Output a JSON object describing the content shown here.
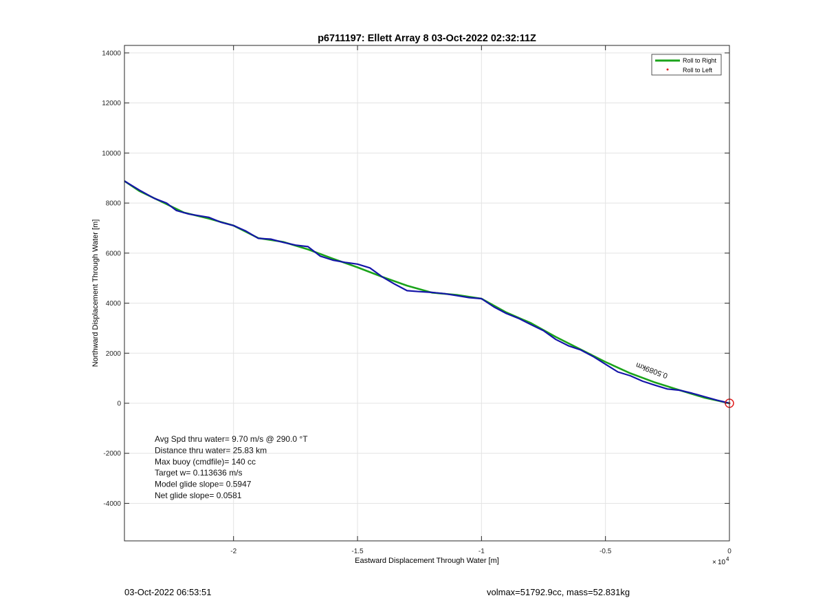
{
  "chart_data": {
    "type": "line",
    "title": "p6711197: Ellett Array 8 03-Oct-2022 02:32:11Z",
    "xlabel": "Eastward Displacement Through Water [m]",
    "ylabel": "Northward Displacement Through Water [m]",
    "x_exponent_label": "10",
    "x_exponent": "4",
    "xlim": [
      -24400,
      0
    ],
    "ylim": [
      -5500,
      14300
    ],
    "xticks": [
      -20000,
      -15000,
      -10000,
      -5000,
      0
    ],
    "xtick_labels": [
      "-2",
      "-1.5",
      "-1",
      "-0.5",
      "0"
    ],
    "yticks": [
      -4000,
      -2000,
      0,
      2000,
      4000,
      6000,
      8000,
      10000,
      12000,
      14000
    ],
    "ytick_labels": [
      "-4000",
      "-2000",
      "0",
      "2000",
      "4000",
      "6000",
      "8000",
      "10000",
      "12000",
      "14000"
    ],
    "grid": true,
    "legend_position": "top-right",
    "series": [
      {
        "name": "Roll to Right",
        "color": "#1aa31a",
        "points": [
          [
            -24400,
            8880
          ],
          [
            -23800,
            8480
          ],
          [
            -23000,
            8100
          ],
          [
            -22000,
            7620
          ],
          [
            -21000,
            7380
          ],
          [
            -20000,
            7100
          ],
          [
            -19000,
            6600
          ],
          [
            -18000,
            6450
          ],
          [
            -17000,
            6150
          ],
          [
            -16000,
            5780
          ],
          [
            -15000,
            5430
          ],
          [
            -14000,
            5050
          ],
          [
            -13000,
            4700
          ],
          [
            -12000,
            4420
          ],
          [
            -11000,
            4330
          ],
          [
            -10000,
            4180
          ],
          [
            -9000,
            3630
          ],
          [
            -8000,
            3200
          ],
          [
            -7000,
            2650
          ],
          [
            -6000,
            2150
          ],
          [
            -5000,
            1650
          ],
          [
            -4000,
            1200
          ],
          [
            -3000,
            830
          ],
          [
            -2000,
            520
          ],
          [
            -1000,
            220
          ],
          [
            0,
            0
          ]
        ]
      },
      {
        "name": "",
        "color": "#1414a8",
        "points": [
          [
            -24400,
            8880
          ],
          [
            -23800,
            8520
          ],
          [
            -23200,
            8190
          ],
          [
            -22700,
            8000
          ],
          [
            -22300,
            7700
          ],
          [
            -21800,
            7560
          ],
          [
            -21000,
            7430
          ],
          [
            -20500,
            7230
          ],
          [
            -20000,
            7100
          ],
          [
            -19500,
            6880
          ],
          [
            -19000,
            6590
          ],
          [
            -18500,
            6560
          ],
          [
            -18000,
            6430
          ],
          [
            -17500,
            6320
          ],
          [
            -17000,
            6260
          ],
          [
            -16500,
            5880
          ],
          [
            -16000,
            5720
          ],
          [
            -15500,
            5630
          ],
          [
            -15000,
            5560
          ],
          [
            -14500,
            5410
          ],
          [
            -14000,
            5050
          ],
          [
            -13500,
            4760
          ],
          [
            -13000,
            4500
          ],
          [
            -12500,
            4460
          ],
          [
            -12000,
            4430
          ],
          [
            -11500,
            4380
          ],
          [
            -11000,
            4300
          ],
          [
            -10500,
            4220
          ],
          [
            -10000,
            4180
          ],
          [
            -9500,
            3850
          ],
          [
            -9000,
            3590
          ],
          [
            -8500,
            3390
          ],
          [
            -8000,
            3140
          ],
          [
            -7500,
            2900
          ],
          [
            -7000,
            2550
          ],
          [
            -6500,
            2300
          ],
          [
            -6000,
            2130
          ],
          [
            -5500,
            1870
          ],
          [
            -5000,
            1560
          ],
          [
            -4500,
            1250
          ],
          [
            -4000,
            1100
          ],
          [
            -3500,
            880
          ],
          [
            -3000,
            720
          ],
          [
            -2500,
            570
          ],
          [
            -2000,
            520
          ],
          [
            -1500,
            400
          ],
          [
            -1000,
            260
          ],
          [
            -500,
            120
          ],
          [
            0,
            0
          ]
        ]
      },
      {
        "name": "Roll to Left",
        "color": "#e01c1c",
        "points": [
          [
            0,
            0
          ]
        ]
      }
    ],
    "annotations": [
      {
        "text": "0.5089km",
        "x": -3100,
        "y": 1400,
        "rotation": 200
      }
    ],
    "stats_text": [
      "Avg Spd thru water=  9.70 m/s @ 290.0 °T",
      "Distance thru water= 25.83 km",
      "Max buoy (cmdfile)= 140 cc",
      "Target w= 0.113636 m/s",
      "Model glide slope= 0.5947",
      "Net glide slope= 0.0581"
    ]
  },
  "footer": {
    "left": "03-Oct-2022 06:53:51",
    "right": "volmax=51792.9cc, mass=52.831kg"
  }
}
